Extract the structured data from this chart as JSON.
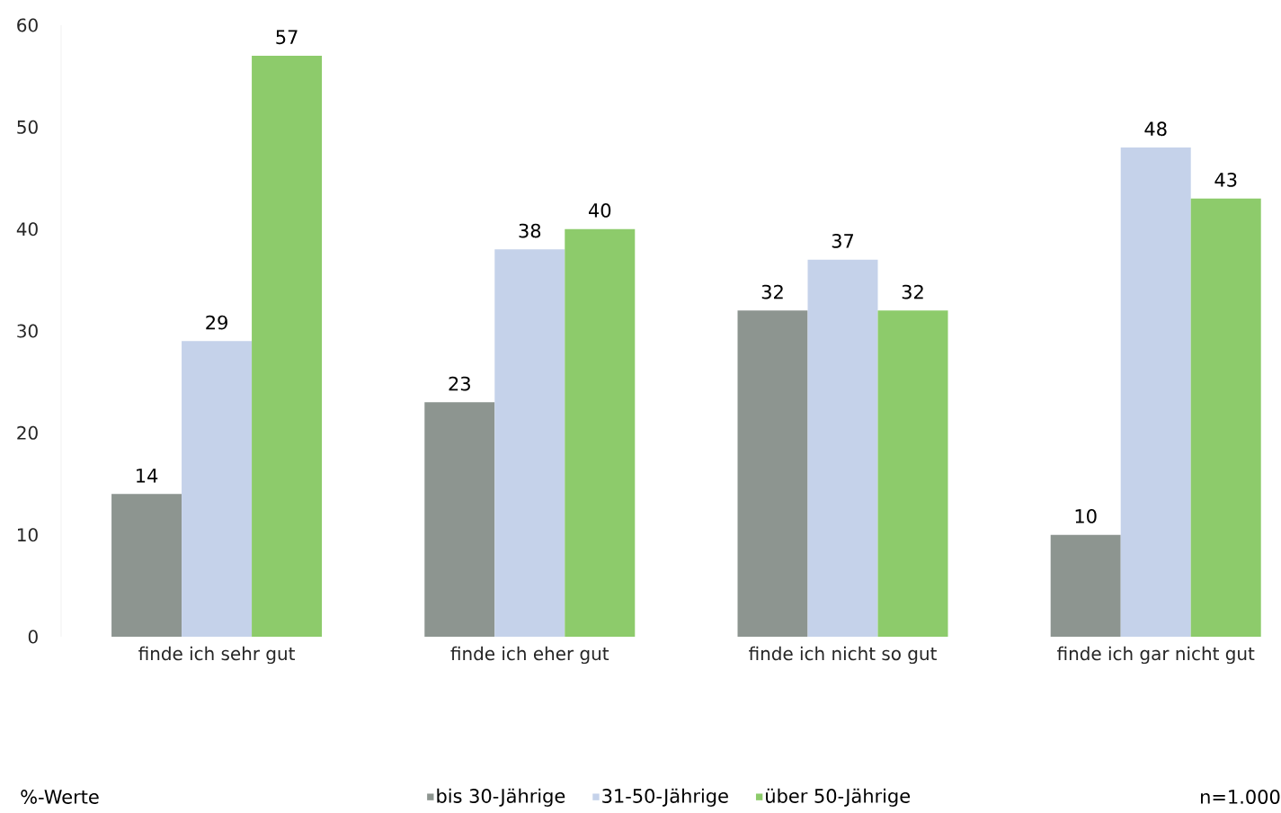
{
  "chart_data": {
    "type": "bar",
    "categories": [
      "finde ich sehr gut",
      "finde ich eher gut",
      "finde ich nicht so gut",
      "finde ich gar nicht gut"
    ],
    "series": [
      {
        "name": "bis 30-Jährige",
        "color": "#8d9590",
        "values": [
          14,
          23,
          32,
          10
        ]
      },
      {
        "name": "31-50-Jährige",
        "color": "#c5d2ea",
        "values": [
          29,
          38,
          37,
          48
        ]
      },
      {
        "name": "über 50-Jährige",
        "color": "#8dcb6b",
        "values": [
          57,
          40,
          32,
          43
        ]
      }
    ],
    "ylim": [
      0,
      60
    ],
    "yticks": [
      0,
      10,
      20,
      30,
      40,
      50,
      60
    ],
    "data_labels": true,
    "legend": "bottom",
    "grid": false,
    "annotations": [
      "%-Werte",
      "n=1.000"
    ]
  }
}
